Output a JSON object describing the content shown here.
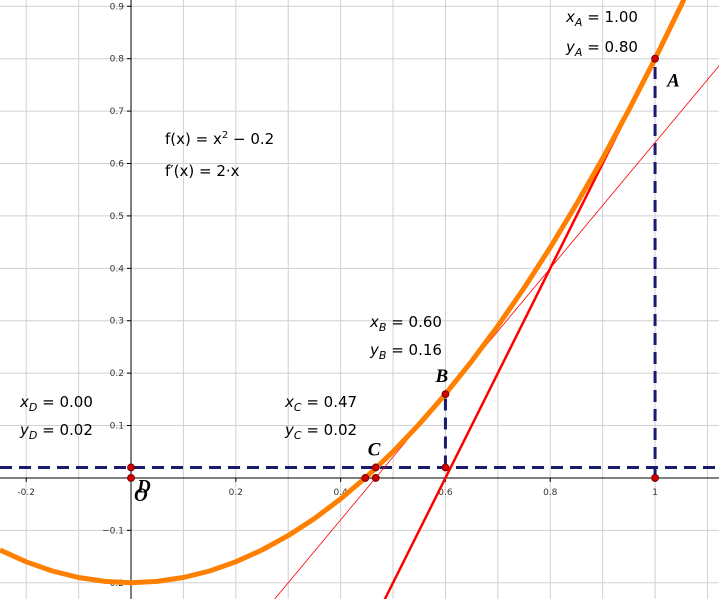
{
  "chart_data": {
    "type": "function-plot",
    "xlim": [
      -0.25,
      1.122
    ],
    "ylim": [
      -0.231,
      0.912
    ],
    "xticks": [
      -0.2,
      0.2,
      0.4,
      0.6,
      0.8,
      1
    ],
    "yticks": [
      {
        "value": -0.2,
        "label": "−0.2"
      },
      {
        "value": -0.1,
        "label": "−0.1"
      },
      0.1,
      0.2,
      0.3,
      0.4,
      0.5,
      0.6,
      0.7,
      0.8,
      0.9
    ],
    "x_gridlines": [
      -0.2,
      -0.1,
      0.1,
      0.2,
      0.3,
      0.4,
      0.5,
      0.6,
      0.7,
      0.8,
      0.9,
      1,
      1.1
    ],
    "y_gridlines": [
      -0.2,
      -0.1,
      0.1,
      0.2,
      0.3,
      0.4,
      0.5,
      0.6,
      0.7,
      0.8,
      0.9
    ],
    "grid": true,
    "origin_label": "O",
    "curve": {
      "color": "#ff8000",
      "x": [
        -0.25,
        -0.2,
        -0.15,
        -0.1,
        -0.05,
        0,
        0.05,
        0.1,
        0.15,
        0.2,
        0.25,
        0.3,
        0.35,
        0.4,
        0.45,
        0.5,
        0.55,
        0.6,
        0.65,
        0.7,
        0.75,
        0.8,
        0.85,
        0.9,
        0.95,
        1,
        1.05,
        1.1
      ],
      "y": [
        -0.1375,
        -0.16,
        -0.1775,
        -0.19,
        -0.1975,
        -0.2,
        -0.1975,
        -0.19,
        -0.1775,
        -0.16,
        -0.1375,
        -0.11,
        -0.0775,
        -0.04,
        0.0025,
        0.05,
        0.1025,
        0.16,
        0.2225,
        0.29,
        0.3625,
        0.44,
        0.5225,
        0.61,
        0.7025,
        0.8,
        0.9025,
        1.01
      ]
    },
    "tangents": [
      {
        "color": "#ff0000",
        "width": 2.5,
        "x": [
          0.48,
          1.06
        ],
        "y": [
          -0.24,
          0.92
        ]
      },
      {
        "color": "#ff0000",
        "width": 0.8,
        "x": [
          0.25,
          1.15
        ],
        "y": [
          -0.26,
          0.82
        ]
      }
    ],
    "dashed": [
      {
        "color": "#1a1a6e",
        "x": [
          -0.25,
          1.122
        ],
        "y": [
          0.02,
          0.02
        ]
      },
      {
        "color": "#1a1a6e",
        "x": [
          0.6,
          0.6
        ],
        "y": [
          0.02,
          0.16
        ]
      },
      {
        "color": "#1a1a6e",
        "x": [
          1,
          1
        ],
        "y": [
          0,
          0.8
        ]
      }
    ],
    "points": [
      {
        "label": "A",
        "x": 1,
        "y": 0.8
      },
      {
        "label": "B",
        "x": 0.6,
        "y": 0.16
      },
      {
        "label": "C",
        "x": 0.467,
        "y": 0.02
      },
      {
        "label": "D",
        "x": 0,
        "y": 0.02
      },
      {
        "label": null,
        "x": 1,
        "y": 0
      },
      {
        "label": null,
        "x": 0.6,
        "y": 0.02
      },
      {
        "label": null,
        "x": 0.447,
        "y": 0
      },
      {
        "label": null,
        "x": 0.467,
        "y": 0
      },
      {
        "label": null,
        "x": 0,
        "y": 0
      }
    ],
    "annotations": [
      {
        "text": "x",
        "sub": "A",
        "rest": " = 1.00"
      },
      {
        "text": "y",
        "sub": "A",
        "rest": " = 0.80"
      },
      {
        "text": "x",
        "sub": "B",
        "rest": " = 0.60"
      },
      {
        "text": "y",
        "sub": "B",
        "rest": " = 0.16"
      },
      {
        "text": "x",
        "sub": "C",
        "rest": " = 0.47"
      },
      {
        "text": "y",
        "sub": "C",
        "rest": " = 0.02"
      },
      {
        "text": "x",
        "sub": "D",
        "rest": " = 0.00"
      },
      {
        "text": "y",
        "sub": "D",
        "rest": " = 0.02"
      }
    ],
    "formulas": [
      {
        "text": "f(x) = x",
        "sup": "2",
        "rest": " − 0.2"
      },
      {
        "text": "f′(x) = 2·x",
        "sup": null,
        "rest": null
      }
    ]
  }
}
